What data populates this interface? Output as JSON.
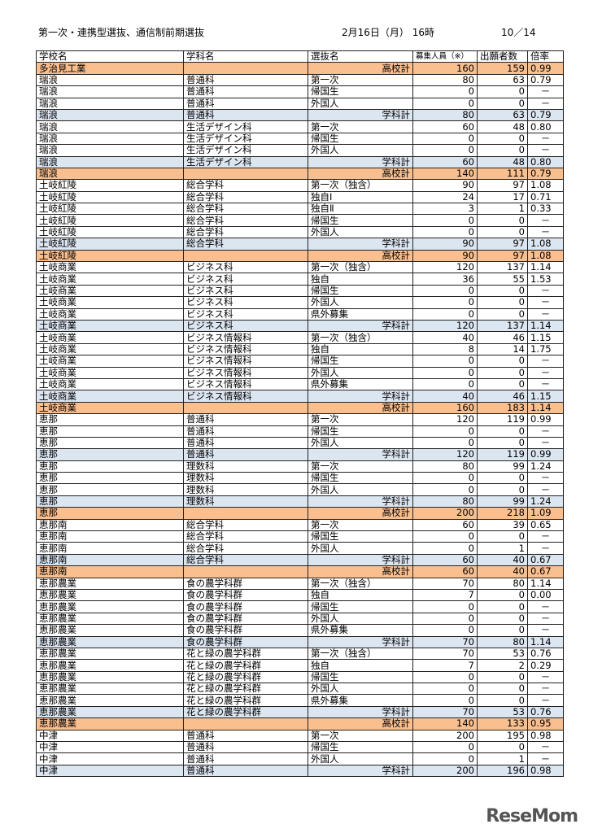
{
  "header": {
    "title": "第一次・連携型選抜、通信制前期選抜",
    "datetime": "2月16日（月） 16時",
    "page": "10／14"
  },
  "columns": [
    "学校名",
    "学科名",
    "選抜名",
    "募集人員（※）",
    "出願者数",
    "倍率"
  ],
  "colors": {
    "dept_subtotal": "#dce6f1",
    "school_total": "#fabf8f"
  },
  "watermark": "ReseMom",
  "rows": [
    [
      "多治見工業",
      "",
      "高校計",
      "160",
      "159",
      "0.99",
      "s"
    ],
    [
      "瑞浪",
      "普通科",
      "第一次",
      "80",
      "63",
      "0.79",
      ""
    ],
    [
      "瑞浪",
      "普通科",
      "帰国生",
      "0",
      "0",
      "－",
      ""
    ],
    [
      "瑞浪",
      "普通科",
      "外国人",
      "0",
      "0",
      "－",
      ""
    ],
    [
      "瑞浪",
      "普通科",
      "学科計",
      "80",
      "63",
      "0.79",
      "d"
    ],
    [
      "瑞浪",
      "生活デザイン科",
      "第一次",
      "60",
      "48",
      "0.80",
      ""
    ],
    [
      "瑞浪",
      "生活デザイン科",
      "帰国生",
      "0",
      "0",
      "－",
      ""
    ],
    [
      "瑞浪",
      "生活デザイン科",
      "外国人",
      "0",
      "0",
      "－",
      ""
    ],
    [
      "瑞浪",
      "生活デザイン科",
      "学科計",
      "60",
      "48",
      "0.80",
      "d"
    ],
    [
      "瑞浪",
      "",
      "高校計",
      "140",
      "111",
      "0.79",
      "s"
    ],
    [
      "土岐紅陵",
      "総合学科",
      "第一次（独含）",
      "90",
      "97",
      "1.08",
      ""
    ],
    [
      "土岐紅陵",
      "総合学科",
      "独自Ⅰ",
      "24",
      "17",
      "0.71",
      ""
    ],
    [
      "土岐紅陵",
      "総合学科",
      "独自Ⅱ",
      "3",
      "1",
      "0.33",
      ""
    ],
    [
      "土岐紅陵",
      "総合学科",
      "帰国生",
      "0",
      "0",
      "－",
      ""
    ],
    [
      "土岐紅陵",
      "総合学科",
      "外国人",
      "0",
      "0",
      "－",
      ""
    ],
    [
      "土岐紅陵",
      "総合学科",
      "学科計",
      "90",
      "97",
      "1.08",
      "d"
    ],
    [
      "土岐紅陵",
      "",
      "高校計",
      "90",
      "97",
      "1.08",
      "s"
    ],
    [
      "土岐商業",
      "ビジネス科",
      "第一次（独含）",
      "120",
      "137",
      "1.14",
      ""
    ],
    [
      "土岐商業",
      "ビジネス科",
      "独自",
      "36",
      "55",
      "1.53",
      ""
    ],
    [
      "土岐商業",
      "ビジネス科",
      "帰国生",
      "0",
      "0",
      "－",
      ""
    ],
    [
      "土岐商業",
      "ビジネス科",
      "外国人",
      "0",
      "0",
      "－",
      ""
    ],
    [
      "土岐商業",
      "ビジネス科",
      "県外募集",
      "0",
      "0",
      "－",
      ""
    ],
    [
      "土岐商業",
      "ビジネス科",
      "学科計",
      "120",
      "137",
      "1.14",
      "d"
    ],
    [
      "土岐商業",
      "ビジネス情報科",
      "第一次（独含）",
      "40",
      "46",
      "1.15",
      ""
    ],
    [
      "土岐商業",
      "ビジネス情報科",
      "独自",
      "8",
      "14",
      "1.75",
      ""
    ],
    [
      "土岐商業",
      "ビジネス情報科",
      "帰国生",
      "0",
      "0",
      "－",
      ""
    ],
    [
      "土岐商業",
      "ビジネス情報科",
      "外国人",
      "0",
      "0",
      "－",
      ""
    ],
    [
      "土岐商業",
      "ビジネス情報科",
      "県外募集",
      "0",
      "0",
      "－",
      ""
    ],
    [
      "土岐商業",
      "ビジネス情報科",
      "学科計",
      "40",
      "46",
      "1.15",
      "d"
    ],
    [
      "土岐商業",
      "",
      "高校計",
      "160",
      "183",
      "1.14",
      "s"
    ],
    [
      "恵那",
      "普通科",
      "第一次",
      "120",
      "119",
      "0.99",
      ""
    ],
    [
      "恵那",
      "普通科",
      "帰国生",
      "0",
      "0",
      "－",
      ""
    ],
    [
      "恵那",
      "普通科",
      "外国人",
      "0",
      "0",
      "－",
      ""
    ],
    [
      "恵那",
      "普通科",
      "学科計",
      "120",
      "119",
      "0.99",
      "d"
    ],
    [
      "恵那",
      "理数科",
      "第一次",
      "80",
      "99",
      "1.24",
      ""
    ],
    [
      "恵那",
      "理数科",
      "帰国生",
      "0",
      "0",
      "－",
      ""
    ],
    [
      "恵那",
      "理数科",
      "外国人",
      "0",
      "0",
      "－",
      ""
    ],
    [
      "恵那",
      "理数科",
      "学科計",
      "80",
      "99",
      "1.24",
      "d"
    ],
    [
      "恵那",
      "",
      "高校計",
      "200",
      "218",
      "1.09",
      "s"
    ],
    [
      "恵那南",
      "総合学科",
      "第一次",
      "60",
      "39",
      "0.65",
      ""
    ],
    [
      "恵那南",
      "総合学科",
      "帰国生",
      "0",
      "0",
      "－",
      ""
    ],
    [
      "恵那南",
      "総合学科",
      "外国人",
      "0",
      "1",
      "－",
      ""
    ],
    [
      "恵那南",
      "総合学科",
      "学科計",
      "60",
      "40",
      "0.67",
      "d"
    ],
    [
      "恵那南",
      "",
      "高校計",
      "60",
      "40",
      "0.67",
      "s"
    ],
    [
      "恵那農業",
      "食の農学科群",
      "第一次（独含）",
      "70",
      "80",
      "1.14",
      ""
    ],
    [
      "恵那農業",
      "食の農学科群",
      "独自",
      "7",
      "0",
      "0.00",
      ""
    ],
    [
      "恵那農業",
      "食の農学科群",
      "帰国生",
      "0",
      "0",
      "－",
      ""
    ],
    [
      "恵那農業",
      "食の農学科群",
      "外国人",
      "0",
      "0",
      "－",
      ""
    ],
    [
      "恵那農業",
      "食の農学科群",
      "県外募集",
      "0",
      "0",
      "－",
      ""
    ],
    [
      "恵那農業",
      "食の農学科群",
      "学科計",
      "70",
      "80",
      "1.14",
      "d"
    ],
    [
      "恵那農業",
      "花と緑の農学科群",
      "第一次（独含）",
      "70",
      "53",
      "0.76",
      ""
    ],
    [
      "恵那農業",
      "花と緑の農学科群",
      "独自",
      "7",
      "2",
      "0.29",
      ""
    ],
    [
      "恵那農業",
      "花と緑の農学科群",
      "帰国生",
      "0",
      "0",
      "－",
      ""
    ],
    [
      "恵那農業",
      "花と緑の農学科群",
      "外国人",
      "0",
      "0",
      "－",
      ""
    ],
    [
      "恵那農業",
      "花と緑の農学科群",
      "県外募集",
      "0",
      "0",
      "－",
      ""
    ],
    [
      "恵那農業",
      "花と緑の農学科群",
      "学科計",
      "70",
      "53",
      "0.76",
      "d"
    ],
    [
      "恵那農業",
      "",
      "高校計",
      "140",
      "133",
      "0.95",
      "s"
    ],
    [
      "中津",
      "普通科",
      "第一次",
      "200",
      "195",
      "0.98",
      ""
    ],
    [
      "中津",
      "普通科",
      "帰国生",
      "0",
      "0",
      "－",
      ""
    ],
    [
      "中津",
      "普通科",
      "外国人",
      "0",
      "1",
      "－",
      ""
    ],
    [
      "中津",
      "普通科",
      "学科計",
      "200",
      "196",
      "0.98",
      "d"
    ]
  ]
}
